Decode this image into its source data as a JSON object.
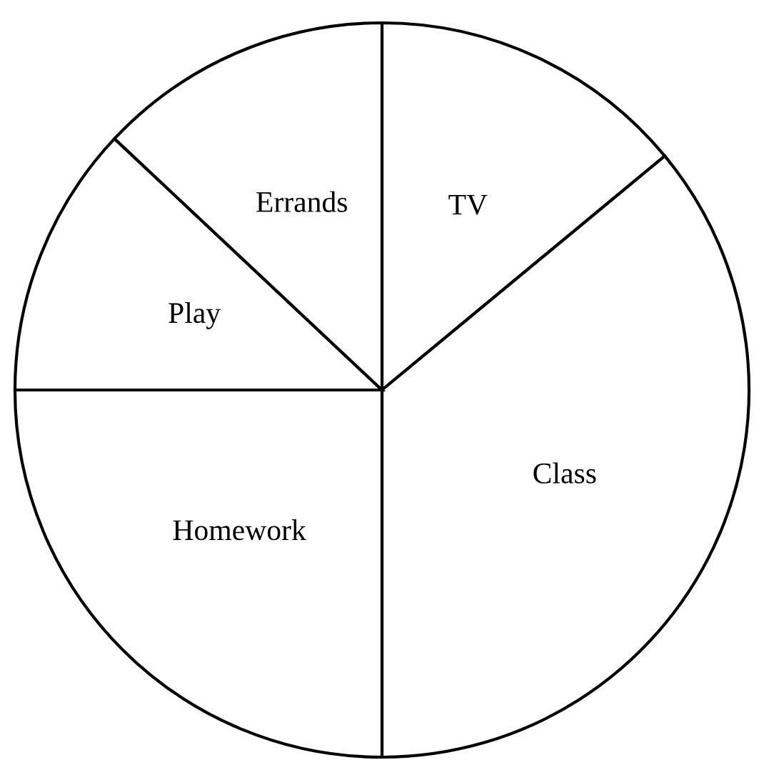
{
  "chart_data": {
    "type": "pie",
    "categories": [
      "TV",
      "Class",
      "Homework",
      "Play",
      "Errands"
    ],
    "values": [
      14,
      36,
      25,
      12,
      13
    ],
    "colors": [
      "#ffffff",
      "#ffffff",
      "#ffffff",
      "#ffffff",
      "#ffffff"
    ]
  }
}
